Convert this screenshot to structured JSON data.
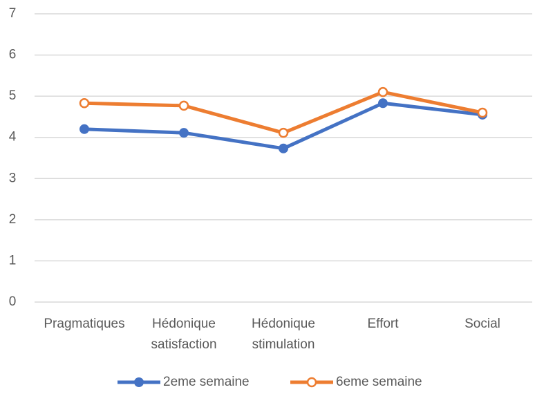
{
  "chart_data": {
    "type": "line",
    "categories": [
      "Pragmatiques",
      "Hédonique satisfaction",
      "Hédonique stimulation",
      "Effort",
      "Social"
    ],
    "series": [
      {
        "name": "2eme semaine",
        "color": "#4472c4",
        "values": [
          4.2,
          4.11,
          3.73,
          4.83,
          4.55
        ]
      },
      {
        "name": "6eme semaine",
        "color": "#ed7d31",
        "values": [
          4.83,
          4.77,
          4.11,
          5.1,
          4.6
        ]
      }
    ],
    "ylim": [
      0,
      7
    ],
    "yticks": [
      0,
      1,
      2,
      3,
      4,
      5,
      6,
      7
    ],
    "grid": true,
    "legend": "bottom"
  }
}
